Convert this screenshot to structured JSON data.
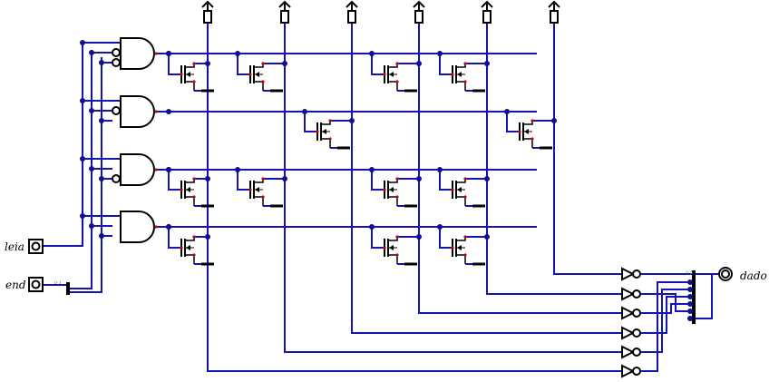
{
  "pins": {
    "input_read": {
      "label": "leia"
    },
    "input_address": {
      "label": "end"
    },
    "output_data": {
      "label": "dado"
    },
    "address_split": {
      "label": "0-1"
    },
    "data_merge": {
      "label": "0-5"
    }
  },
  "rom": {
    "rows": 4,
    "columns": 6,
    "cells": [
      [
        1,
        1,
        0,
        1,
        1,
        0
      ],
      [
        0,
        0,
        1,
        0,
        0,
        1
      ],
      [
        1,
        1,
        0,
        1,
        1,
        0
      ],
      [
        1,
        0,
        0,
        1,
        1,
        0
      ]
    ]
  },
  "colors": {
    "wire": "#1414b4",
    "node": "#10108c",
    "component": "#000000",
    "pin_dot": "#cc0000"
  }
}
